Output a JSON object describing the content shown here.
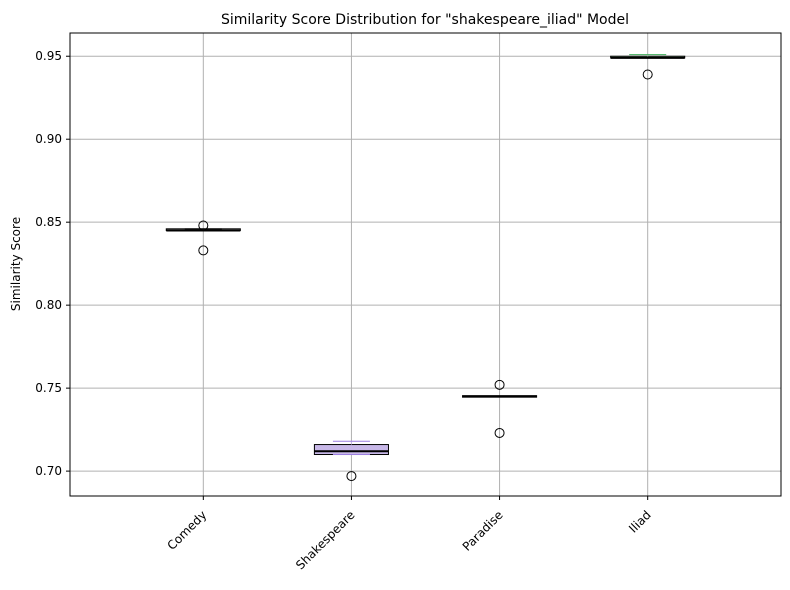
{
  "chart_data": {
    "type": "box",
    "title": "Similarity Score Distribution for \"shakespeare_iliad\" Model",
    "xlabel": "",
    "ylabel": "Similarity Score",
    "ylim": [
      0.685,
      0.964
    ],
    "yticks": [
      0.7,
      0.75,
      0.8,
      0.85,
      0.9,
      0.95
    ],
    "ytick_labels": [
      "0.70",
      "0.75",
      "0.80",
      "0.85",
      "0.90",
      "0.95"
    ],
    "grid": true,
    "categories": [
      "Comedy",
      "Shakespeare",
      "Paradise",
      "Iliad"
    ],
    "boxes": [
      {
        "category": "Comedy",
        "whislo": 0.845,
        "q1": 0.845,
        "med": 0.845,
        "q3": 0.846,
        "whishi": 0.846,
        "fliers": [
          0.848,
          0.833
        ],
        "color": "#d9d9d9"
      },
      {
        "category": "Shakespeare",
        "whislo": 0.71,
        "q1": 0.71,
        "med": 0.712,
        "q3": 0.716,
        "whishi": 0.718,
        "fliers": [
          0.697
        ],
        "color": "#c8b8e8"
      },
      {
        "category": "Paradise",
        "whislo": 0.745,
        "q1": 0.745,
        "med": 0.745,
        "q3": 0.745,
        "whishi": 0.745,
        "fliers": [
          0.752,
          0.723
        ],
        "color": "#d9d9d9"
      },
      {
        "category": "Iliad",
        "whislo": 0.949,
        "q1": 0.949,
        "med": 0.949,
        "q3": 0.95,
        "whishi": 0.951,
        "fliers": [
          0.939
        ],
        "color": "#9ed6a8"
      }
    ]
  }
}
